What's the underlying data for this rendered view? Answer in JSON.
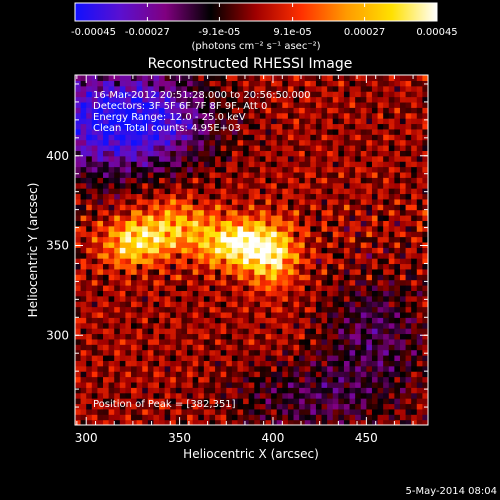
{
  "chart_data": {
    "type": "heatmap",
    "title": "Reconstructed RHESSI Image",
    "xlabel": "Heliocentric X (arcsec)",
    "ylabel": "Heliocentric Y (arcsec)",
    "xlim": [
      294,
      483
    ],
    "ylim": [
      250,
      445
    ],
    "x_ticks": [
      300,
      350,
      400,
      450
    ],
    "y_ticks": [
      300,
      350,
      400
    ],
    "grid": false,
    "annotations": [
      "16-Mar-2012 20:51:28.000 to 20:56:50.000",
      "Detectors: 3F 5F 6F 7F 8F 9F, Att 0",
      "Energy Range: 12.0 - 25.0 keV",
      "Clean     Total counts: 4.95E+03"
    ],
    "peak": {
      "label": "Position of Peak = [382,351]",
      "x": 382,
      "y": 351
    },
    "colorbar": {
      "unit_label": "(photons cm⁻² s⁻¹ asec⁻²)",
      "range": [
        -0.00045,
        0.00045
      ],
      "tick_labels": [
        "-0.00045",
        "-0.00027",
        "-9.1e-05",
        "9.1e-05",
        "0.00027",
        "0.00045"
      ],
      "tick_values": [
        -0.00045,
        -0.00027,
        -9.1e-05,
        9.1e-05,
        0.00027,
        0.00045
      ],
      "colors": [
        "#1010ff",
        "#5a10d0",
        "#800080",
        "#000000",
        "#a00000",
        "#ff3000",
        "#ff9a00",
        "#ffe000",
        "#ffffff"
      ]
    },
    "sources": [
      {
        "x": 382,
        "y": 351,
        "sx": 14,
        "sy": 9,
        "amp": 0.00045
      },
      {
        "x": 326,
        "y": 352,
        "sx": 12,
        "sy": 9,
        "amp": 0.00034
      },
      {
        "x": 400,
        "y": 343,
        "sx": 9,
        "sy": 12,
        "amp": 0.00028
      },
      {
        "x": 348,
        "y": 362,
        "sx": 14,
        "sy": 10,
        "amp": 0.00024
      }
    ],
    "negative_regions": [
      {
        "x": 305,
        "y": 420,
        "sx": 28,
        "sy": 22,
        "amp": -0.00035
      },
      {
        "x": 340,
        "y": 420,
        "sx": 22,
        "sy": 16,
        "amp": -0.00025
      },
      {
        "x": 455,
        "y": 300,
        "sx": 18,
        "sy": 22,
        "amp": -0.00018
      },
      {
        "x": 420,
        "y": 265,
        "sx": 28,
        "sy": 14,
        "amp": -0.00015
      }
    ]
  },
  "footer": {
    "timestamp": "5-May-2014 08:04"
  }
}
